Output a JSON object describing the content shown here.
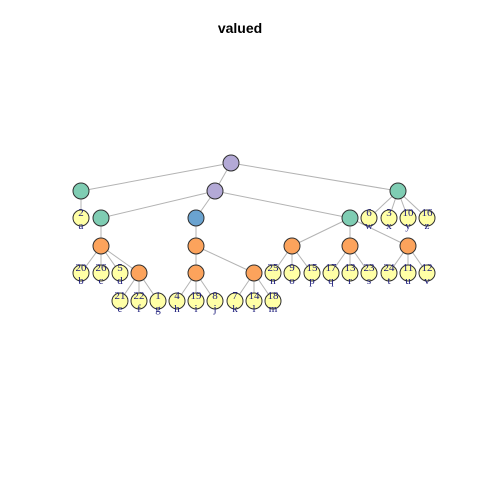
{
  "title": "valued",
  "colors": {
    "root": "#b3a9d6",
    "level1": "#7fcdb3",
    "level2": "#6aa3d0",
    "level3": "#fca35c",
    "leaf": "#ffffa6",
    "edge": "#b3b3b3",
    "label": "#1a1a7a"
  },
  "tree": {
    "nodes": [
      {
        "id": "n0",
        "kind": "root"
      },
      {
        "id": "n1",
        "kind": "level1"
      },
      {
        "id": "n2",
        "kind": "root"
      },
      {
        "id": "n3",
        "kind": "level1"
      },
      {
        "id": "n4",
        "kind": "level1"
      },
      {
        "id": "n5",
        "kind": "level2"
      },
      {
        "id": "n6",
        "kind": "level1"
      },
      {
        "id": "n7",
        "kind": "level3"
      },
      {
        "id": "n8",
        "kind": "level3"
      },
      {
        "id": "n9",
        "kind": "level3"
      },
      {
        "id": "n10",
        "kind": "level3"
      },
      {
        "id": "n11",
        "kind": "level3"
      },
      {
        "id": "n12",
        "kind": "level3"
      },
      {
        "id": "n13",
        "kind": "level3"
      },
      {
        "id": "n14",
        "kind": "level3"
      },
      {
        "id": "a",
        "kind": "leaf",
        "value": "2",
        "label": "a"
      },
      {
        "id": "w",
        "kind": "leaf",
        "value": "6",
        "label": "w"
      },
      {
        "id": "x",
        "kind": "leaf",
        "value": "3",
        "label": "x"
      },
      {
        "id": "y",
        "kind": "leaf",
        "value": "10",
        "label": "y"
      },
      {
        "id": "z",
        "kind": "leaf",
        "value": "16",
        "label": "z"
      },
      {
        "id": "b",
        "kind": "leaf",
        "value": "20",
        "label": "b"
      },
      {
        "id": "c",
        "kind": "leaf",
        "value": "26",
        "label": "c"
      },
      {
        "id": "d",
        "kind": "leaf",
        "value": "5",
        "label": "d"
      },
      {
        "id": "n",
        "kind": "leaf",
        "value": "25",
        "label": "n"
      },
      {
        "id": "o",
        "kind": "leaf",
        "value": "9",
        "label": "o"
      },
      {
        "id": "p",
        "kind": "leaf",
        "value": "15",
        "label": "p"
      },
      {
        "id": "q",
        "kind": "leaf",
        "value": "17",
        "label": "q"
      },
      {
        "id": "r",
        "kind": "leaf",
        "value": "13",
        "label": "r"
      },
      {
        "id": "s",
        "kind": "leaf",
        "value": "23",
        "label": "s"
      },
      {
        "id": "t",
        "kind": "leaf",
        "value": "24",
        "label": "t"
      },
      {
        "id": "u",
        "kind": "leaf",
        "value": "11",
        "label": "u"
      },
      {
        "id": "v",
        "kind": "leaf",
        "value": "12",
        "label": "v"
      },
      {
        "id": "e",
        "kind": "leaf",
        "value": "21",
        "label": "e"
      },
      {
        "id": "f",
        "kind": "leaf",
        "value": "22",
        "label": "f"
      },
      {
        "id": "g",
        "kind": "leaf",
        "value": "1",
        "label": "g"
      },
      {
        "id": "h",
        "kind": "leaf",
        "value": "4",
        "label": "h"
      },
      {
        "id": "i",
        "kind": "leaf",
        "value": "19",
        "label": "i"
      },
      {
        "id": "j",
        "kind": "leaf",
        "value": "8",
        "label": "j"
      },
      {
        "id": "k",
        "kind": "leaf",
        "value": "7",
        "label": "k"
      },
      {
        "id": "l",
        "kind": "leaf",
        "value": "14",
        "label": "l"
      },
      {
        "id": "m",
        "kind": "leaf",
        "value": "18",
        "label": "m"
      }
    ],
    "edges": [
      [
        "n0",
        "n1"
      ],
      [
        "n0",
        "n2"
      ],
      [
        "n0",
        "n6"
      ],
      [
        "n1",
        "a"
      ],
      [
        "n2",
        "n3"
      ],
      [
        "n2",
        "n5"
      ],
      [
        "n2",
        "n4"
      ],
      [
        "n6",
        "w"
      ],
      [
        "n6",
        "x"
      ],
      [
        "n6",
        "y"
      ],
      [
        "n6",
        "z"
      ],
      [
        "n3",
        "n7"
      ],
      [
        "n5",
        "n8"
      ],
      [
        "n4",
        "n9"
      ],
      [
        "n4",
        "n10"
      ],
      [
        "n4",
        "n11"
      ],
      [
        "n7",
        "b"
      ],
      [
        "n7",
        "c"
      ],
      [
        "n7",
        "d"
      ],
      [
        "n7",
        "n12"
      ],
      [
        "n8",
        "n13"
      ],
      [
        "n8",
        "n14"
      ],
      [
        "n9",
        "n"
      ],
      [
        "n9",
        "o"
      ],
      [
        "n9",
        "p"
      ],
      [
        "n10",
        "q"
      ],
      [
        "n10",
        "r"
      ],
      [
        "n10",
        "s"
      ],
      [
        "n11",
        "t"
      ],
      [
        "n11",
        "u"
      ],
      [
        "n11",
        "v"
      ],
      [
        "n12",
        "e"
      ],
      [
        "n12",
        "f"
      ],
      [
        "n12",
        "g"
      ],
      [
        "n13",
        "h"
      ],
      [
        "n13",
        "i"
      ],
      [
        "n13",
        "j"
      ],
      [
        "n14",
        "k"
      ],
      [
        "n14",
        "l"
      ],
      [
        "n14",
        "m"
      ]
    ]
  }
}
